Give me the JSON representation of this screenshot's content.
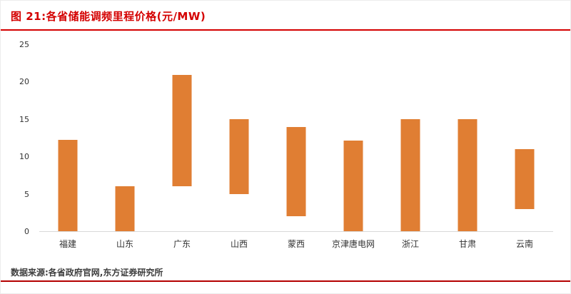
{
  "header": {
    "title": "图 21:各省储能调频里程价格(元/MW)"
  },
  "footer": {
    "source": "数据来源:各省政府官网,东方证券研究所"
  },
  "colors": {
    "bar": "#E07E33",
    "title_red": "#D40000",
    "rule_red": "#B40000"
  },
  "chart_data": {
    "type": "bar",
    "subtype": "floating-range",
    "title": "图 21:各省储能调频里程价格(元/MW)",
    "xlabel": "",
    "ylabel": "",
    "ylim": [
      0,
      25
    ],
    "yticks": [
      0,
      5,
      10,
      15,
      20,
      25
    ],
    "grid": false,
    "legend": false,
    "categories": [
      "福建",
      "山东",
      "广东",
      "山西",
      "蒙西",
      "京津唐电网",
      "浙江",
      "甘肃",
      "云南"
    ],
    "ranges": [
      [
        0,
        12.3
      ],
      [
        0,
        6
      ],
      [
        6,
        21
      ],
      [
        5,
        15
      ],
      [
        2,
        14
      ],
      [
        0,
        12.2
      ],
      [
        0,
        15
      ],
      [
        0,
        15
      ],
      [
        3,
        11
      ]
    ]
  }
}
